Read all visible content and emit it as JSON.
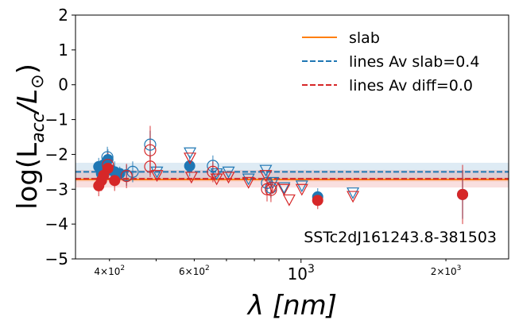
{
  "chart_data": {
    "type": "scatter",
    "object_name": "SSTc2dJ161243.8-381503",
    "xlabel": "λ [nm]",
    "ylabel_parts": {
      "prefix": "log(L",
      "sub": "acc",
      "mid": "/L",
      "sun": "⊙",
      "suffix": ")"
    },
    "xscale": "log",
    "xlim": [
      340,
      2700
    ],
    "ylim": [
      -5,
      2
    ],
    "y_ticks": [
      {
        "value": 2,
        "label": "2"
      },
      {
        "value": 1,
        "label": "1"
      },
      {
        "value": 0,
        "label": "0"
      },
      {
        "value": -1,
        "label": "−1"
      },
      {
        "value": -2,
        "label": "−2"
      },
      {
        "value": -3,
        "label": "−3"
      },
      {
        "value": -4,
        "label": "−4"
      },
      {
        "value": -5,
        "label": "−5"
      }
    ],
    "x_major_ticks": [
      {
        "value": 1000,
        "label_base": "10",
        "label_exp": "3"
      }
    ],
    "x_minor_labeled": [
      {
        "value": 400,
        "label_mant": "4",
        "label_exp": "2"
      },
      {
        "value": 600,
        "label_mant": "6",
        "label_exp": "2"
      },
      {
        "value": 2000,
        "label_mant": "2",
        "label_exp": "3"
      }
    ],
    "x_minor_unlabeled": [
      500,
      700,
      800,
      900
    ],
    "legend": [
      {
        "label": "slab",
        "style": "solid",
        "color": "#ff7f0e"
      },
      {
        "label": "lines Av slab=0.4",
        "style": "dashed",
        "color": "#1f77b4"
      },
      {
        "label": "lines Av diff=0.0",
        "style": "dashed",
        "color": "#d62728"
      }
    ],
    "reference_lines": [
      {
        "name": "slab",
        "y": -2.72,
        "color": "#ff7f0e",
        "style": "solid",
        "band": [
          -2.78,
          -2.66
        ],
        "band_color": "#ff7f0e"
      },
      {
        "name": "lines Av slab=0.4",
        "y": -2.5,
        "color": "#1f77b4",
        "style": "dashed",
        "band": [
          -2.72,
          -2.24
        ],
        "band_color": "#1f77b4"
      },
      {
        "name": "lines Av diff=0.0",
        "y": -2.7,
        "color": "#d62728",
        "style": "dashed",
        "band": [
          -2.95,
          -2.45
        ],
        "band_color": "#d62728"
      }
    ],
    "series": [
      {
        "name": "lines Av slab=0.4 detections",
        "marker": "filled-circle",
        "color": "#1f77b4",
        "points": [
          {
            "x": 380,
            "y": -2.35,
            "err": 0.25
          },
          {
            "x": 385,
            "y": -2.55,
            "err": 0.3
          },
          {
            "x": 389,
            "y": -2.3,
            "err": 0.2
          },
          {
            "x": 397,
            "y": -2.15,
            "err": 0.3
          },
          {
            "x": 403,
            "y": -2.45,
            "err": 0.25
          },
          {
            "x": 410,
            "y": -2.5,
            "err": 0.3
          },
          {
            "x": 420,
            "y": -2.55,
            "err": 0.2
          },
          {
            "x": 587,
            "y": -2.33,
            "err": 0.3
          },
          {
            "x": 1083,
            "y": -3.22,
            "err": 0.25
          },
          {
            "x": 2166,
            "y": -3.15,
            "err": 0.7
          }
        ]
      },
      {
        "name": "lines Av slab=0.4 open",
        "marker": "open-circle",
        "color": "#1f77b4",
        "points": [
          {
            "x": 396,
            "y": -2.08,
            "err": 0.3
          },
          {
            "x": 434,
            "y": -2.6,
            "err": 0.3
          },
          {
            "x": 447,
            "y": -2.5,
            "err": 0.3
          },
          {
            "x": 486,
            "y": -1.72,
            "err": 0.4
          },
          {
            "x": 656,
            "y": -2.33,
            "err": 0.3
          },
          {
            "x": 850,
            "y": -2.82,
            "err": 0.3
          },
          {
            "x": 866,
            "y": -2.95,
            "err": 0.3
          }
        ]
      },
      {
        "name": "lines Av slab=0.4 upper limits",
        "marker": "triangle-down",
        "color": "#1f77b4",
        "points": [
          {
            "x": 502,
            "y": -2.5
          },
          {
            "x": 588,
            "y": -1.95
          },
          {
            "x": 668,
            "y": -2.55
          },
          {
            "x": 707,
            "y": -2.5
          },
          {
            "x": 778,
            "y": -2.7
          },
          {
            "x": 845,
            "y": -2.45
          },
          {
            "x": 874,
            "y": -2.8
          },
          {
            "x": 922,
            "y": -2.95
          },
          {
            "x": 1004,
            "y": -2.9
          },
          {
            "x": 1282,
            "y": -3.1
          }
        ]
      },
      {
        "name": "lines Av diff=0.0 detections",
        "marker": "filled-circle",
        "color": "#d62728",
        "points": [
          {
            "x": 380,
            "y": -2.9,
            "err": 0.3
          },
          {
            "x": 385,
            "y": -2.75,
            "err": 0.3
          },
          {
            "x": 389,
            "y": -2.6,
            "err": 0.25
          },
          {
            "x": 397,
            "y": -2.4,
            "err": 0.3
          },
          {
            "x": 410,
            "y": -2.75,
            "err": 0.3
          },
          {
            "x": 1083,
            "y": -3.32,
            "err": 0.25
          },
          {
            "x": 2166,
            "y": -3.15,
            "err": 0.85
          }
        ]
      },
      {
        "name": "lines Av diff=0.0 open",
        "marker": "open-circle",
        "color": "#d62728",
        "points": [
          {
            "x": 397,
            "y": -2.3,
            "err": 0.35
          },
          {
            "x": 434,
            "y": -2.62,
            "err": 0.35
          },
          {
            "x": 486,
            "y": -1.88,
            "err": 0.7
          },
          {
            "x": 486,
            "y": -2.35,
            "err": 0.3
          },
          {
            "x": 656,
            "y": -2.5,
            "err": 0.3
          },
          {
            "x": 850,
            "y": -3.0,
            "err": 0.35
          },
          {
            "x": 866,
            "y": -3.02,
            "err": 0.35
          }
        ]
      },
      {
        "name": "lines Av diff=0.0 upper limits",
        "marker": "triangle-down",
        "color": "#d62728",
        "points": [
          {
            "x": 502,
            "y": -2.6
          },
          {
            "x": 588,
            "y": -2.1
          },
          {
            "x": 592,
            "y": -2.65
          },
          {
            "x": 668,
            "y": -2.7
          },
          {
            "x": 707,
            "y": -2.65
          },
          {
            "x": 778,
            "y": -2.8
          },
          {
            "x": 845,
            "y": -2.6
          },
          {
            "x": 874,
            "y": -2.95
          },
          {
            "x": 922,
            "y": -3.0
          },
          {
            "x": 945,
            "y": -3.3
          },
          {
            "x": 1004,
            "y": -3.0
          },
          {
            "x": 1282,
            "y": -3.2
          }
        ]
      }
    ]
  }
}
